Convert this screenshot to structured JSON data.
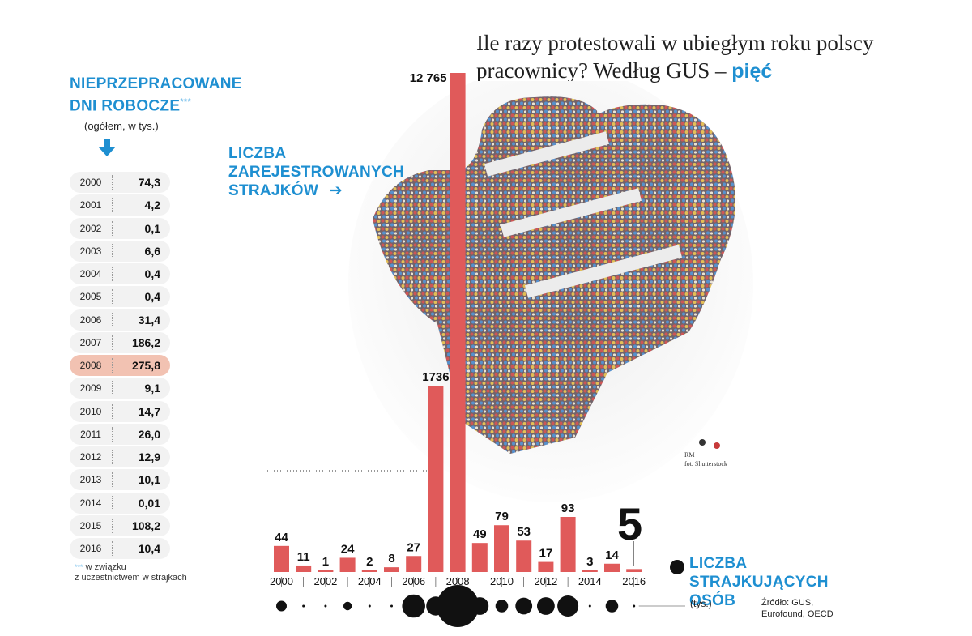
{
  "headline": {
    "text": "Ile razy protestowali w ubiegłym roku polscy pracownicy? Według GUS –",
    "highlight": "pięć"
  },
  "workdays": {
    "title_line1": "NIEPRZEPRACOWANE",
    "title_line2": "DNI ROBOCZE",
    "title_marker": "***",
    "subtitle": "(ogółem, w tys.)",
    "highlight_year": "2008",
    "rows": [
      {
        "year": "2000",
        "value": "74,3"
      },
      {
        "year": "2001",
        "value": "4,2"
      },
      {
        "year": "2002",
        "value": "0,1"
      },
      {
        "year": "2003",
        "value": "6,6"
      },
      {
        "year": "2004",
        "value": "0,4"
      },
      {
        "year": "2005",
        "value": "0,4"
      },
      {
        "year": "2006",
        "value": "31,4"
      },
      {
        "year": "2007",
        "value": "186,2"
      },
      {
        "year": "2008",
        "value": "275,8"
      },
      {
        "year": "2009",
        "value": "9,1"
      },
      {
        "year": "2010",
        "value": "14,7"
      },
      {
        "year": "2011",
        "value": "26,0"
      },
      {
        "year": "2012",
        "value": "12,9"
      },
      {
        "year": "2013",
        "value": "10,1"
      },
      {
        "year": "2014",
        "value": "0,01"
      },
      {
        "year": "2015",
        "value": "108,2"
      },
      {
        "year": "2016",
        "value": "10,4"
      }
    ],
    "note_marker": "***",
    "note_line1": "w związku",
    "note_line2": "z uczestnictwem w strajkach"
  },
  "strikes_label": {
    "line1": "LICZBA",
    "line2": "ZAREJESTROWANYCH",
    "line3": "STRAJKÓW",
    "arrow": "➔"
  },
  "persons_label": {
    "line1": "LICZBA",
    "line2": "STRAJKUJĄCYCH",
    "line3": "OSÓB",
    "unit": "(tys.)"
  },
  "source": {
    "line1": "Źródło: GUS,",
    "line2": "Eurofound, OECD"
  },
  "credit": {
    "line1": "RM",
    "line2": "fot. Shutterstock"
  },
  "colors": {
    "accent": "#1e8fd1",
    "bar": "#e05a5a",
    "highlight": "#f2c2b2"
  },
  "chart_data": {
    "type": "bar",
    "title": "Liczba zarejestrowanych strajków",
    "categories": [
      "2000",
      "2001",
      "2002",
      "2003",
      "2004",
      "2005",
      "2006",
      "2007",
      "2008",
      "2009",
      "2010",
      "2011",
      "2012",
      "2013",
      "2014",
      "2015",
      "2016"
    ],
    "values": [
      44,
      11,
      1,
      24,
      2,
      8,
      27,
      1736,
      12765,
      49,
      79,
      53,
      17,
      93,
      3,
      14,
      5
    ],
    "value_labels": [
      "44",
      "11",
      "1",
      "24",
      "2",
      "8",
      "27",
      "1736",
      "12 765",
      "49",
      "79",
      "53",
      "17",
      "93",
      "3",
      "14",
      "5"
    ],
    "x_tick_labels": [
      "2000",
      "2002",
      "2004",
      "2006",
      "2008",
      "2010",
      "2012",
      "2014",
      "2016"
    ],
    "axis_note": "scale broken for 2007 and 2008",
    "persons_series": {
      "name": "Liczba strajkujących osób (tys.)",
      "relative_size": [
        0.25,
        0.06,
        0.04,
        0.2,
        0.04,
        0.04,
        0.55,
        0.45,
        1.0,
        0.42,
        0.3,
        0.4,
        0.42,
        0.5,
        0.04,
        0.3,
        0.05
      ]
    }
  }
}
